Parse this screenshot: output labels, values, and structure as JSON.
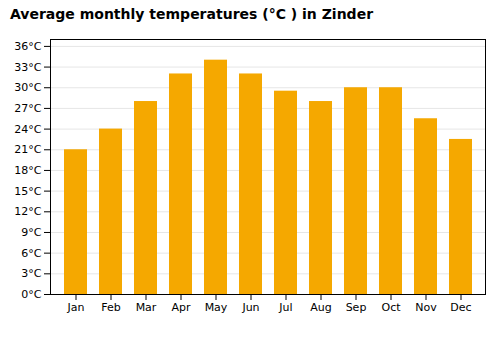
{
  "chart_data": {
    "type": "bar",
    "title": "Average monthly temperatures (°C ) in Zinder",
    "categories": [
      "Jan",
      "Feb",
      "Mar",
      "Apr",
      "May",
      "Jun",
      "Jul",
      "Aug",
      "Sep",
      "Oct",
      "Nov",
      "Dec"
    ],
    "values": [
      21,
      24,
      28,
      32,
      34,
      32,
      29.5,
      28,
      30,
      30,
      25.5,
      22.5
    ],
    "color": "#F5A800",
    "ylim": [
      0,
      37
    ],
    "yticks": [
      {
        "value": 0,
        "label": "0°C"
      },
      {
        "value": 3,
        "label": "3°C"
      },
      {
        "value": 6,
        "label": "6°C"
      },
      {
        "value": 9,
        "label": "9°C"
      },
      {
        "value": 12,
        "label": "12°C"
      },
      {
        "value": 15,
        "label": "15°C"
      },
      {
        "value": 18,
        "label": "18°C"
      },
      {
        "value": 21,
        "label": "21°C"
      },
      {
        "value": 24,
        "label": "24°C"
      },
      {
        "value": 27,
        "label": "27°C"
      },
      {
        "value": 30,
        "label": "30°C"
      },
      {
        "value": 33,
        "label": "33°C"
      },
      {
        "value": 36,
        "label": "36°C"
      }
    ],
    "grid": true
  }
}
